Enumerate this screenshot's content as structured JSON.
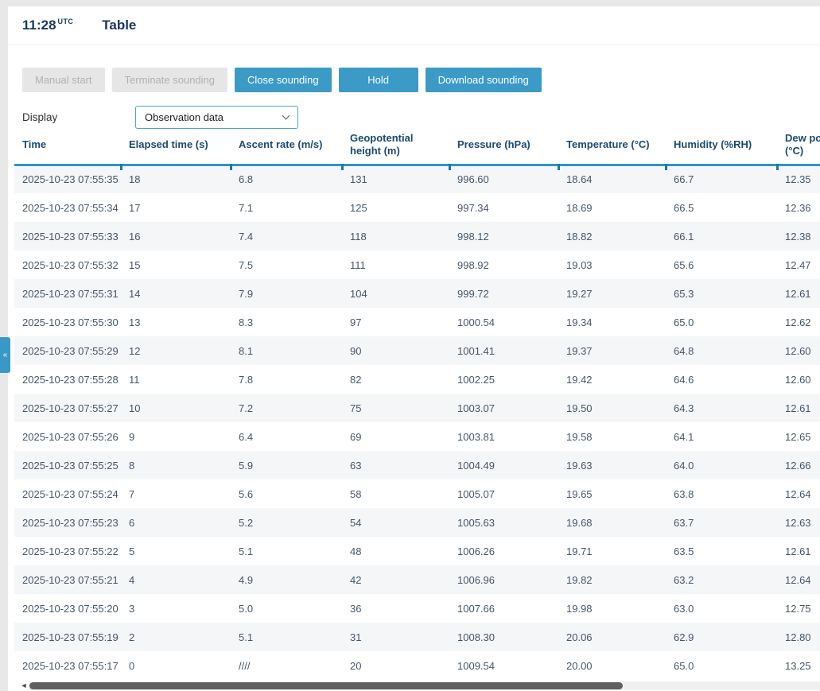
{
  "header": {
    "time": "11:28",
    "time_suffix": "UTC",
    "title": "Table"
  },
  "toolbar": {
    "buttons": [
      {
        "label": "Manual start",
        "enabled": false
      },
      {
        "label": "Terminate sounding",
        "enabled": false
      },
      {
        "label": "Close sounding",
        "enabled": true
      },
      {
        "label": "Hold",
        "enabled": true
      },
      {
        "label": "Download sounding",
        "enabled": true
      }
    ]
  },
  "display": {
    "label": "Display",
    "selected_option": "Observation data"
  },
  "table": {
    "columns": [
      "Time",
      "Elapsed time (s)",
      "Ascent rate (m/s)",
      "Geopotential height (m)",
      "Pressure (hPa)",
      "Temperature (°C)",
      "Humidity (%RH)",
      "Dew point (°C)"
    ],
    "rows": [
      [
        "2025-10-23 07:55:35",
        "18",
        "6.8",
        "131",
        "996.60",
        "18.64",
        "66.7",
        "12.35"
      ],
      [
        "2025-10-23 07:55:34",
        "17",
        "7.1",
        "125",
        "997.34",
        "18.69",
        "66.5",
        "12.36"
      ],
      [
        "2025-10-23 07:55:33",
        "16",
        "7.4",
        "118",
        "998.12",
        "18.82",
        "66.1",
        "12.38"
      ],
      [
        "2025-10-23 07:55:32",
        "15",
        "7.5",
        "111",
        "998.92",
        "19.03",
        "65.6",
        "12.47"
      ],
      [
        "2025-10-23 07:55:31",
        "14",
        "7.9",
        "104",
        "999.72",
        "19.27",
        "65.3",
        "12.61"
      ],
      [
        "2025-10-23 07:55:30",
        "13",
        "8.3",
        "97",
        "1000.54",
        "19.34",
        "65.0",
        "12.62"
      ],
      [
        "2025-10-23 07:55:29",
        "12",
        "8.1",
        "90",
        "1001.41",
        "19.37",
        "64.8",
        "12.60"
      ],
      [
        "2025-10-23 07:55:28",
        "11",
        "7.8",
        "82",
        "1002.25",
        "19.42",
        "64.6",
        "12.60"
      ],
      [
        "2025-10-23 07:55:27",
        "10",
        "7.2",
        "75",
        "1003.07",
        "19.50",
        "64.3",
        "12.61"
      ],
      [
        "2025-10-23 07:55:26",
        "9",
        "6.4",
        "69",
        "1003.81",
        "19.58",
        "64.1",
        "12.65"
      ],
      [
        "2025-10-23 07:55:25",
        "8",
        "5.9",
        "63",
        "1004.49",
        "19.63",
        "64.0",
        "12.66"
      ],
      [
        "2025-10-23 07:55:24",
        "7",
        "5.6",
        "58",
        "1005.07",
        "19.65",
        "63.8",
        "12.64"
      ],
      [
        "2025-10-23 07:55:23",
        "6",
        "5.2",
        "54",
        "1005.63",
        "19.68",
        "63.7",
        "12.63"
      ],
      [
        "2025-10-23 07:55:22",
        "5",
        "5.1",
        "48",
        "1006.26",
        "19.71",
        "63.5",
        "12.61"
      ],
      [
        "2025-10-23 07:55:21",
        "4",
        "4.9",
        "42",
        "1006.96",
        "19.82",
        "63.2",
        "12.64"
      ],
      [
        "2025-10-23 07:55:20",
        "3",
        "5.0",
        "36",
        "1007.66",
        "19.98",
        "63.0",
        "12.75"
      ],
      [
        "2025-10-23 07:55:19",
        "2",
        "5.1",
        "31",
        "1008.30",
        "20.06",
        "62.9",
        "12.80"
      ],
      [
        "2025-10-23 07:55:17",
        "0",
        "////",
        "20",
        "1009.54",
        "20.00",
        "65.0",
        "13.25"
      ]
    ]
  },
  "panel_toggle": {
    "icon_glyph": "«"
  },
  "scrollbar": {
    "left_arrow_glyph": "◄"
  },
  "colors": {
    "accent_blue": "#3b9ac6",
    "header_underline": "#2e95cb",
    "title_text": "#17395c",
    "row_alt_bg": "#f4f6f7",
    "disabled_bg": "#e6e6e6"
  }
}
